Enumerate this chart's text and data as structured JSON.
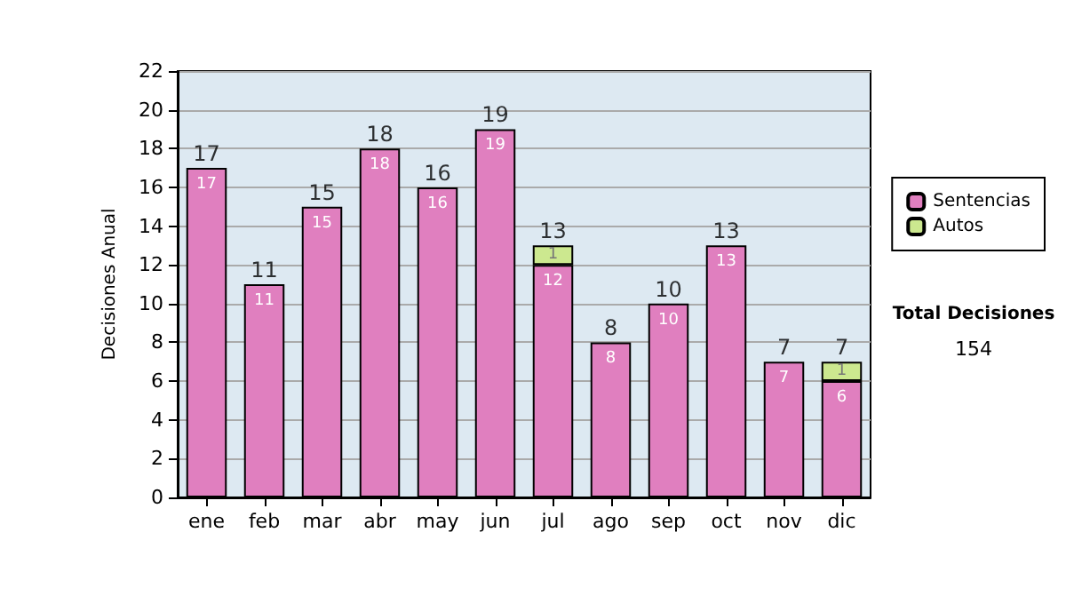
{
  "chart_data": {
    "type": "bar",
    "stacked": true,
    "ylabel": "Decisiones Anual",
    "categories": [
      "ene",
      "feb",
      "mar",
      "abr",
      "may",
      "jun",
      "jul",
      "ago",
      "sep",
      "oct",
      "nov",
      "dic"
    ],
    "series": [
      {
        "name": "Sentencias",
        "color": "#e07fbf",
        "values": [
          17,
          11,
          15,
          18,
          16,
          19,
          12,
          8,
          10,
          13,
          7,
          6
        ],
        "value_labels": [
          "17",
          "11",
          "15",
          "18",
          "16",
          "19",
          "12",
          "8",
          "10",
          "13",
          "7",
          "6"
        ]
      },
      {
        "name": "Autos",
        "color": "#cce88f",
        "values": [
          0,
          0,
          0,
          0,
          0,
          0,
          1,
          0,
          0,
          0,
          0,
          1
        ],
        "value_labels": [
          null,
          null,
          null,
          null,
          null,
          null,
          "1",
          null,
          null,
          null,
          null,
          "1"
        ]
      }
    ],
    "totals": [
      "17",
      "11",
      "15",
      "18",
      "16",
      "19",
      "13",
      "8",
      "10",
      "13",
      "7",
      "7"
    ],
    "ylim": [
      0,
      22
    ],
    "yticks": [
      0,
      2,
      4,
      6,
      8,
      10,
      12,
      14,
      16,
      18,
      20,
      22
    ],
    "grid": "y",
    "legend": "right",
    "annotations": [
      "Total Decisiones",
      "154"
    ]
  }
}
